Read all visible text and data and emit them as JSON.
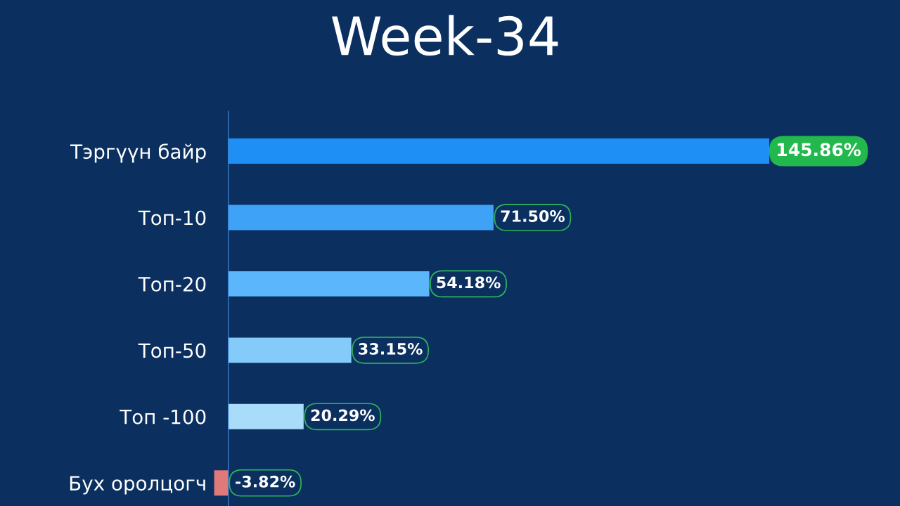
{
  "chart_data": {
    "type": "bar",
    "orientation": "horizontal",
    "title": "Week-34",
    "categories": [
      "Тэргүүн байр",
      "Топ-10",
      "Топ-20",
      "Топ-50",
      "Топ -100",
      "Бух оролцогч"
    ],
    "values": [
      145.86,
      71.5,
      54.18,
      33.15,
      20.29,
      -3.82
    ],
    "value_labels": [
      "145.86%",
      "71.50%",
      "54.18%",
      "33.15%",
      "20.29%",
      "-3.82%"
    ],
    "colors": [
      "#1e8ff5",
      "#3ea2f7",
      "#5cb6fb",
      "#84cbfa",
      "#a8dcf8",
      "#e07a7a"
    ],
    "grid": false,
    "legend": false
  }
}
